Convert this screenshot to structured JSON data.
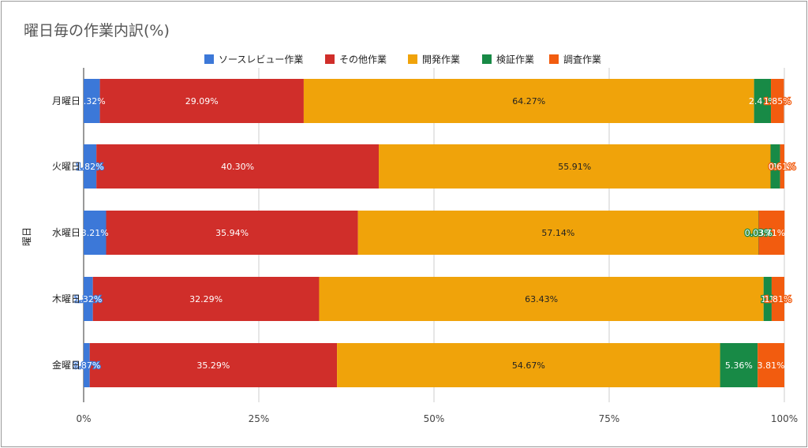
{
  "title": "曜日毎の作業内訳(%)",
  "chart_data": {
    "type": "bar",
    "orientation": "horizontal",
    "stacked": "percent",
    "title": "曜日毎の作業内訳(%)",
    "ylabel": "曜日",
    "xlabel": "",
    "xlim": [
      0,
      100
    ],
    "x_ticks": [
      "0%",
      "25%",
      "50%",
      "75%",
      "100%"
    ],
    "grid": true,
    "legend_position": "top",
    "categories": [
      "月曜日",
      "火曜日",
      "水曜日",
      "木曜日",
      "金曜日"
    ],
    "series": [
      {
        "name": "ソースレビュー作業",
        "color": "#3c78d8",
        "values": [
          2.32,
          1.82,
          3.21,
          1.32,
          0.87
        ]
      },
      {
        "name": "その他作業",
        "color": "#d02e2a",
        "values": [
          29.09,
          40.3,
          35.94,
          32.29,
          35.29
        ]
      },
      {
        "name": "開発作業",
        "color": "#f0a30a",
        "values": [
          64.27,
          55.91,
          57.14,
          63.43,
          54.67
        ]
      },
      {
        "name": "検証作業",
        "color": "#188a46",
        "values": [
          2.41,
          1.36,
          0.03,
          1.15,
          5.36
        ]
      },
      {
        "name": "調査作業",
        "color": "#f25c0f",
        "values": [
          1.85,
          0.61,
          3.71,
          1.81,
          3.81
        ]
      }
    ],
    "data_labels": [
      [
        "2.32%",
        "29.09%",
        "64.27%",
        "2.41%",
        "1.85%"
      ],
      [
        "1.82%",
        "40.30%",
        "55.91%",
        "1",
        "0.61%"
      ],
      [
        "3.21%",
        "35.94%",
        "57.14%",
        "0.03%",
        "3.71%"
      ],
      [
        "1.32%",
        "32.29%",
        "63.43%",
        "1.1",
        "1.81%"
      ],
      [
        "0.87%",
        "35.29%",
        "54.67%",
        "5.36%",
        "3.81%"
      ]
    ]
  }
}
